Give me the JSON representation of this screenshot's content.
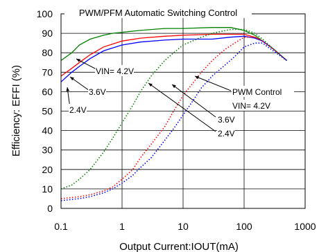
{
  "chart_data": {
    "type": "line",
    "title": "PWM/PFM Automatic Switching Control",
    "xlabel": "Output Current:IOUT(mA)",
    "ylabel": "Efficiency: EFFI (%)",
    "xscale": "log",
    "xlim": [
      0.1,
      1000
    ],
    "ylim": [
      0,
      100
    ],
    "xticks": [
      "0.1",
      "1",
      "10",
      "100",
      "1000"
    ],
    "yticks": [
      "0",
      "10",
      "20",
      "30",
      "40",
      "50",
      "60",
      "70",
      "80",
      "90",
      "100"
    ],
    "grid": true,
    "annotations": {
      "pfm_42": "VIN= 4.2V",
      "pfm_36": "3.6V",
      "pfm_24": "2.4V",
      "pwm_title": "PWM Control",
      "pwm_42": "VIN= 4.2V",
      "pwm_36": "3.6V",
      "pwm_24": "2.4V"
    },
    "series": [
      {
        "color": "#008000",
        "style": "solid",
        "points": [
          [
            0.1,
            76
          ],
          [
            0.15,
            80
          ],
          [
            0.2,
            84
          ],
          [
            0.3,
            87
          ],
          [
            0.5,
            89
          ],
          [
            0.7,
            90
          ],
          [
            1,
            90.5
          ],
          [
            2,
            91.5
          ],
          [
            5,
            92.5
          ],
          [
            10,
            92.5
          ],
          [
            30,
            93
          ],
          [
            60,
            93
          ],
          [
            100,
            91.5
          ],
          [
            150,
            89
          ],
          [
            200,
            86
          ],
          [
            300,
            82
          ],
          [
            500,
            76
          ]
        ]
      },
      {
        "color": "#ff0000",
        "style": "solid",
        "points": [
          [
            0.1,
            68
          ],
          [
            0.15,
            72
          ],
          [
            0.2,
            75
          ],
          [
            0.3,
            79
          ],
          [
            0.5,
            83
          ],
          [
            0.7,
            84.5
          ],
          [
            1,
            86
          ],
          [
            2,
            87.5
          ],
          [
            5,
            88.5
          ],
          [
            10,
            89
          ],
          [
            30,
            89.5
          ],
          [
            60,
            89.5
          ],
          [
            100,
            89.5
          ],
          [
            150,
            88
          ],
          [
            200,
            86
          ],
          [
            300,
            82
          ],
          [
            500,
            76
          ]
        ]
      },
      {
        "color": "#0000ff",
        "style": "solid",
        "points": [
          [
            0.1,
            65
          ],
          [
            0.15,
            70
          ],
          [
            0.2,
            73
          ],
          [
            0.3,
            77
          ],
          [
            0.5,
            81
          ],
          [
            0.7,
            82.5
          ],
          [
            1,
            84
          ],
          [
            2,
            85.5
          ],
          [
            5,
            86.5
          ],
          [
            10,
            87
          ],
          [
            30,
            87
          ],
          [
            60,
            88
          ],
          [
            100,
            88.5
          ],
          [
            150,
            87.5
          ],
          [
            200,
            86
          ],
          [
            300,
            82
          ],
          [
            500,
            76
          ]
        ]
      },
      {
        "color": "#008000",
        "style": "dotted",
        "points": [
          [
            0.1,
            10
          ],
          [
            0.15,
            12
          ],
          [
            0.2,
            15
          ],
          [
            0.3,
            20
          ],
          [
            0.5,
            29
          ],
          [
            0.7,
            36
          ],
          [
            1,
            44
          ],
          [
            1.5,
            53
          ],
          [
            2,
            60
          ],
          [
            3,
            68
          ],
          [
            5,
            76
          ],
          [
            7,
            80
          ],
          [
            10,
            84
          ],
          [
            20,
            88
          ],
          [
            30,
            90
          ],
          [
            60,
            92
          ],
          [
            100,
            92
          ],
          [
            150,
            90
          ],
          [
            200,
            87
          ],
          [
            300,
            82
          ],
          [
            500,
            76
          ]
        ]
      },
      {
        "color": "#ff0000",
        "style": "dotted",
        "points": [
          [
            0.1,
            5
          ],
          [
            0.2,
            6
          ],
          [
            0.3,
            7
          ],
          [
            0.5,
            9
          ],
          [
            0.7,
            11
          ],
          [
            1,
            15
          ],
          [
            1.5,
            20
          ],
          [
            2,
            26
          ],
          [
            3,
            33
          ],
          [
            5,
            42
          ],
          [
            7,
            50
          ],
          [
            10,
            58
          ],
          [
            15,
            65
          ],
          [
            20,
            70
          ],
          [
            30,
            76
          ],
          [
            50,
            82
          ],
          [
            70,
            85
          ],
          [
            100,
            88
          ],
          [
            150,
            88
          ],
          [
            200,
            86
          ],
          [
            300,
            82
          ],
          [
            500,
            76
          ]
        ]
      },
      {
        "color": "#0000ff",
        "style": "dotted",
        "points": [
          [
            0.1,
            4
          ],
          [
            0.2,
            5
          ],
          [
            0.3,
            6
          ],
          [
            0.5,
            8
          ],
          [
            0.7,
            10
          ],
          [
            1,
            13
          ],
          [
            1.5,
            17
          ],
          [
            2,
            21
          ],
          [
            3,
            26
          ],
          [
            5,
            35
          ],
          [
            7,
            41
          ],
          [
            10,
            48
          ],
          [
            15,
            56
          ],
          [
            20,
            62
          ],
          [
            30,
            68
          ],
          [
            50,
            74
          ],
          [
            70,
            78
          ],
          [
            100,
            83
          ],
          [
            150,
            85
          ],
          [
            200,
            85
          ],
          [
            300,
            81
          ],
          [
            500,
            76
          ]
        ]
      }
    ]
  }
}
